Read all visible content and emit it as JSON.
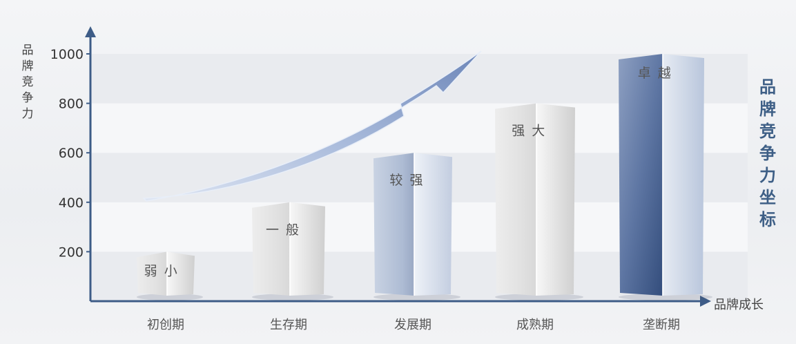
{
  "chart_data": {
    "type": "bar",
    "categories": [
      "初创期",
      "生存期",
      "发展期",
      "成熟期",
      "垄断期"
    ],
    "values": [
      200,
      400,
      600,
      800,
      1000
    ],
    "bar_labels": [
      "弱 小",
      "一 般",
      "较 强",
      "强 大",
      "卓 越"
    ],
    "ylabel": "品牌竞争力",
    "xlabel": "品牌成长",
    "side_title": "品牌竞争力坐标",
    "yticks": [
      200,
      400,
      600,
      800,
      1000
    ],
    "ylim": [
      0,
      1100
    ],
    "grid": true,
    "colors": {
      "axis": "#3d5c87",
      "arrow": "#7f98c8",
      "bar_gray": "#dcdcdc",
      "bar_blue": "#9fb0cc",
      "title": "#3e5f86"
    }
  }
}
